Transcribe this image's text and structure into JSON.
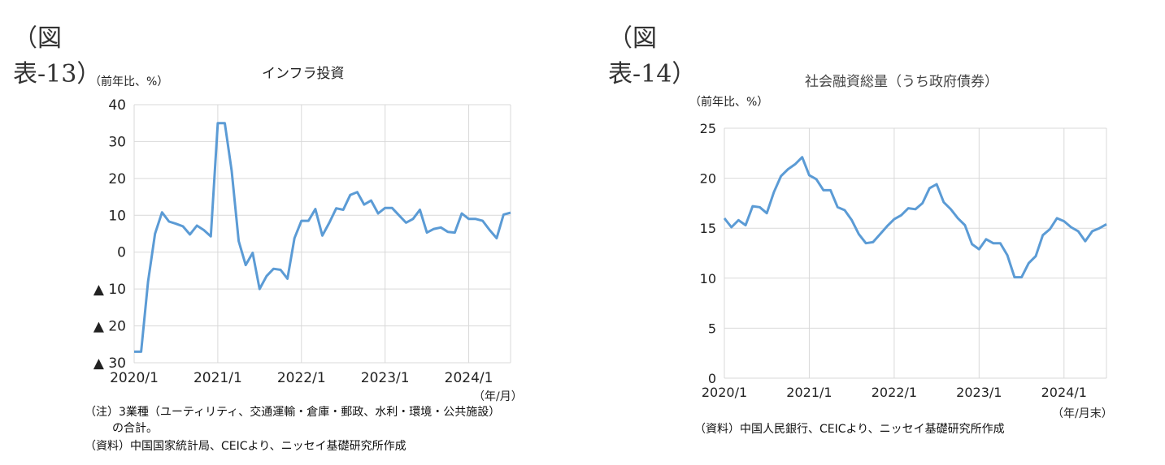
{
  "figures": [
    {
      "label": "（図表-13）",
      "title": "インフラ投資",
      "unit": "（前年比、%）",
      "xunit": "（年/月）",
      "notes": [
        "（注）3業種（ユーティリティ、交通運輸・倉庫・郵政、水利・環境・公共施設）",
        "の合計。",
        "（資料）中国国家統計局、CEICより、ニッセイ基礎研究所作成"
      ]
    },
    {
      "label": "（図表-14）",
      "title": "社会融資総量（うち政府債券）",
      "unit": "（前年比、%）",
      "xunit": "（年/月末）",
      "notes": [
        "（資料）中国人民銀行、CEICより、ニッセイ基礎研究所作成"
      ]
    }
  ],
  "chart_data": [
    {
      "type": "line",
      "title": "インフラ投資",
      "ylabel": "（前年比、%）",
      "xlabel": "（年/月）",
      "ylim": [
        -30,
        40
      ],
      "yticks": [
        40,
        30,
        20,
        10,
        0,
        -10,
        -20,
        -30
      ],
      "ytick_labels": [
        "40",
        "30",
        "20",
        "10",
        "0",
        "▲ 10",
        "▲ 20",
        "▲ 30"
      ],
      "xtick_labels": [
        "2020/1",
        "2021/1",
        "2022/1",
        "2023/1",
        "2024/1"
      ],
      "grid": true,
      "color": "#5b9bd5",
      "x": [
        0,
        1,
        2,
        3,
        4,
        5,
        6,
        7,
        8,
        9,
        10,
        11,
        12,
        13,
        14,
        15,
        16,
        17,
        18,
        19,
        20,
        21,
        22,
        23,
        24,
        25,
        26,
        27,
        28,
        29,
        30,
        31,
        32,
        33,
        34,
        35,
        36,
        37,
        38,
        39,
        40,
        41,
        42,
        43,
        44,
        45,
        46,
        47,
        48,
        49,
        50,
        51,
        52,
        53,
        54
      ],
      "values": [
        -27,
        -27,
        -8,
        5,
        10.8,
        8.3,
        7.7,
        7,
        4.8,
        7.2,
        6,
        4.3,
        35,
        35,
        22,
        3,
        -3.5,
        -0.2,
        -10,
        -6.5,
        -4.5,
        -4.8,
        -7.2,
        3.8,
        8.5,
        8.5,
        11.7,
        4.5,
        8,
        11.9,
        11.5,
        15.5,
        16.3,
        12.9,
        14,
        10.5,
        12,
        12,
        10,
        8,
        9,
        11.5,
        5.3,
        6.3,
        6.7,
        5.5,
        5.3,
        10.5,
        9,
        9,
        8.5,
        6,
        3.8,
        10.2,
        10.7
      ]
    },
    {
      "type": "line",
      "title": "社会融資総量（うち政府債券）",
      "ylabel": "（前年比、%）",
      "xlabel": "（年/月末）",
      "ylim": [
        0,
        25
      ],
      "yticks": [
        0,
        5,
        10,
        15,
        20,
        25
      ],
      "ytick_labels": [
        "0",
        "5",
        "10",
        "15",
        "20",
        "25"
      ],
      "xtick_labels": [
        "2020/1",
        "2021/1",
        "2022/1",
        "2023/1",
        "2024/1"
      ],
      "grid": true,
      "color": "#5b9bd5",
      "x": [
        0,
        1,
        2,
        3,
        4,
        5,
        6,
        7,
        8,
        9,
        10,
        11,
        12,
        13,
        14,
        15,
        16,
        17,
        18,
        19,
        20,
        21,
        22,
        23,
        24,
        25,
        26,
        27,
        28,
        29,
        30,
        31,
        32,
        33,
        34,
        35,
        36,
        37,
        38,
        39,
        40,
        41,
        42,
        43,
        44,
        45,
        46,
        47,
        48,
        49,
        50,
        51,
        52,
        53,
        54
      ],
      "values": [
        16,
        15.1,
        15.8,
        15.3,
        17.2,
        17.1,
        16.5,
        18.6,
        20.2,
        20.9,
        21.4,
        22.1,
        20.3,
        19.9,
        18.8,
        18.8,
        17.1,
        16.8,
        15.8,
        14.4,
        13.5,
        13.6,
        14.4,
        15.2,
        15.9,
        16.3,
        17,
        16.9,
        17.5,
        19,
        19.4,
        17.6,
        16.9,
        16,
        15.3,
        13.4,
        12.9,
        13.9,
        13.5,
        13.5,
        12.3,
        10.1,
        10.1,
        11.5,
        12.2,
        14.3,
        14.9,
        16,
        15.7,
        15.1,
        14.7,
        13.7,
        14.7,
        15,
        15.4
      ]
    }
  ]
}
